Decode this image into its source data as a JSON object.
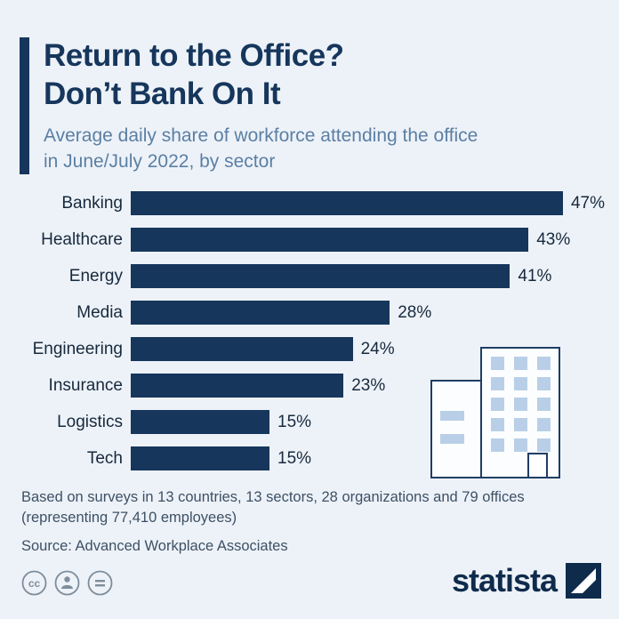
{
  "header": {
    "title_line1": "Return to the Office?",
    "title_line2": "Don’t Bank On It",
    "subtitle_line1": "Average daily share of workforce attending the office",
    "subtitle_line2": "in June/July 2022, by sector"
  },
  "chart_data": {
    "type": "bar",
    "orientation": "horizontal",
    "title": "Return to the Office? Don’t Bank On It",
    "xlabel": "Average daily share of workforce attending the office (%)",
    "xlim": [
      0,
      50
    ],
    "grid": false,
    "legend": "none",
    "categories": [
      "Banking",
      "Healthcare",
      "Energy",
      "Media",
      "Engineering",
      "Insurance",
      "Logistics",
      "Tech"
    ],
    "values": [
      47,
      43,
      41,
      28,
      24,
      23,
      15,
      15
    ],
    "value_labels": [
      "47%",
      "43%",
      "41%",
      "28%",
      "24%",
      "23%",
      "15%",
      "15%"
    ],
    "bar_color": "#16365c"
  },
  "footer": {
    "note_line1": "Based on surveys in 13 countries, 13 sectors, 28 organizations and 79 offices",
    "note_line2": "(representing 77,410 employees)",
    "source": "Source: Advanced Workplace Associates"
  },
  "branding": {
    "logo_text": "statista",
    "license_icons": [
      "cc-icon",
      "person-icon",
      "equals-icon"
    ]
  },
  "colors": {
    "background": "#edf2f8",
    "bar": "#16365c",
    "title": "#16365c",
    "subtitle": "#5b7fa4",
    "note_text": "#3d5065",
    "window_fill": "#b9cfe7"
  }
}
